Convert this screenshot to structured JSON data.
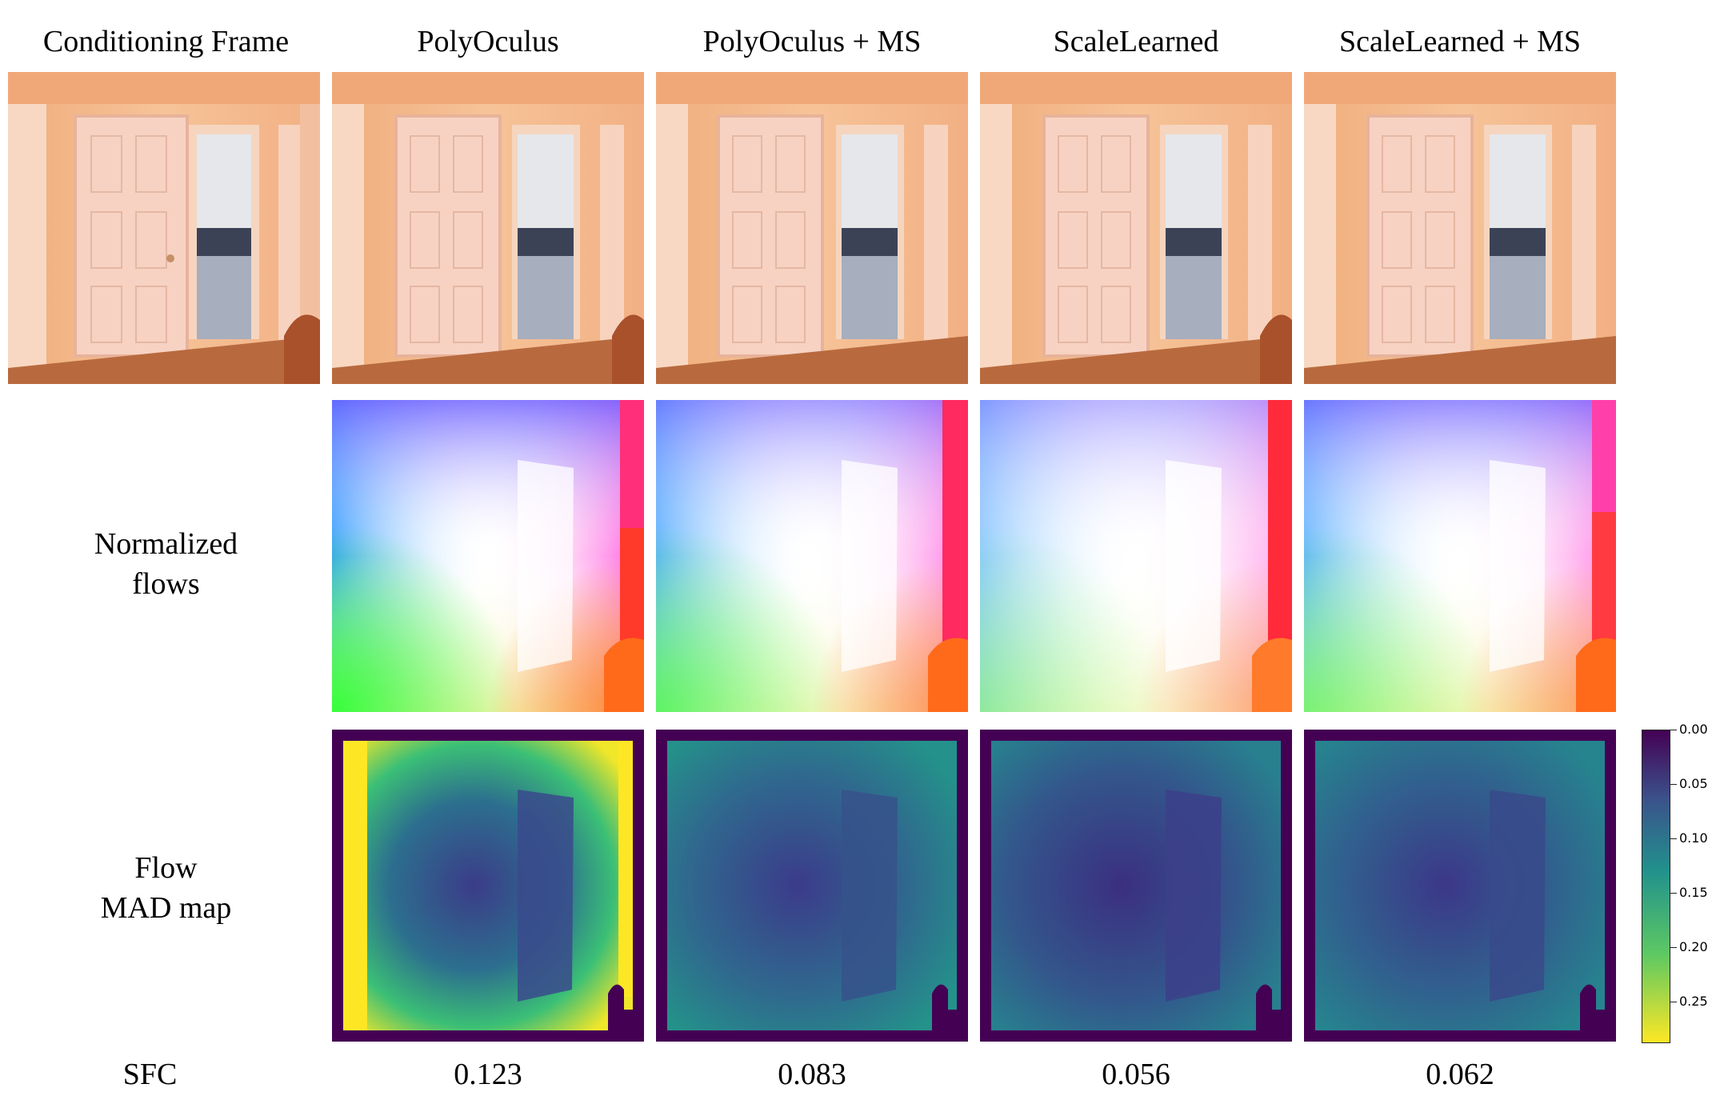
{
  "columns": [
    "Conditioning Frame",
    "PolyOculus",
    "PolyOculus + MS",
    "ScaleLearned",
    "ScaleLearned + MS"
  ],
  "row_labels": {
    "flows_line1": "Normalized",
    "flows_line2": "flows",
    "mad_line1": "Flow",
    "mad_line2": "MAD map",
    "sfc": "SFC"
  },
  "sfc_scores": [
    "0.123",
    "0.083",
    "0.056",
    "0.062"
  ],
  "colorbar": {
    "colormap": "viridis (reversed)",
    "ticks": [
      "0.00",
      "0.05",
      "0.10",
      "0.15",
      "0.20",
      "0.25"
    ]
  },
  "image_descriptions": {
    "row1": "Photo of an orange-lit hallway with a white six-panel door and an open doorway into a bedroom",
    "row2": "Color-wheel optical flow visualizations",
    "row3": "Flow mean-absolute-deviation heatmaps"
  }
}
